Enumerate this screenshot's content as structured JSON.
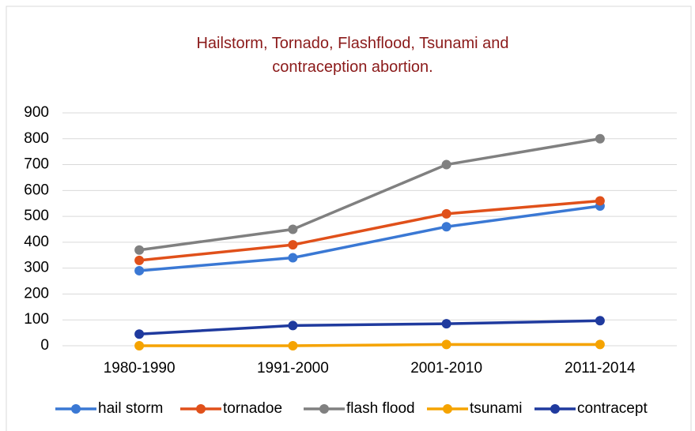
{
  "chart_data": {
    "type": "line",
    "title": "Hailstorm, Tornado, Flashflood, Tsunami and contraception abortion.",
    "categories": [
      "1980-1990",
      "1991-2000",
      "2001-2010",
      "2011-2014"
    ],
    "series": [
      {
        "name": "hail storm",
        "color": "#3a78d4",
        "values": [
          290,
          340,
          460,
          540
        ]
      },
      {
        "name": "tornadoe",
        "color": "#e0501a",
        "values": [
          330,
          390,
          510,
          560
        ]
      },
      {
        "name": "flash flood",
        "color": "#808080",
        "values": [
          370,
          450,
          700,
          800
        ]
      },
      {
        "name": "tsunami",
        "color": "#f5a300",
        "values": [
          0,
          0,
          5,
          5
        ]
      },
      {
        "name": "contracept",
        "color": "#1f3a9e",
        "values": [
          45,
          78,
          85,
          97
        ]
      }
    ],
    "ylim": [
      0,
      900
    ],
    "yticks": [
      0,
      100,
      200,
      300,
      400,
      500,
      600,
      700,
      800,
      900
    ],
    "grid": true,
    "legend": "bottom"
  }
}
